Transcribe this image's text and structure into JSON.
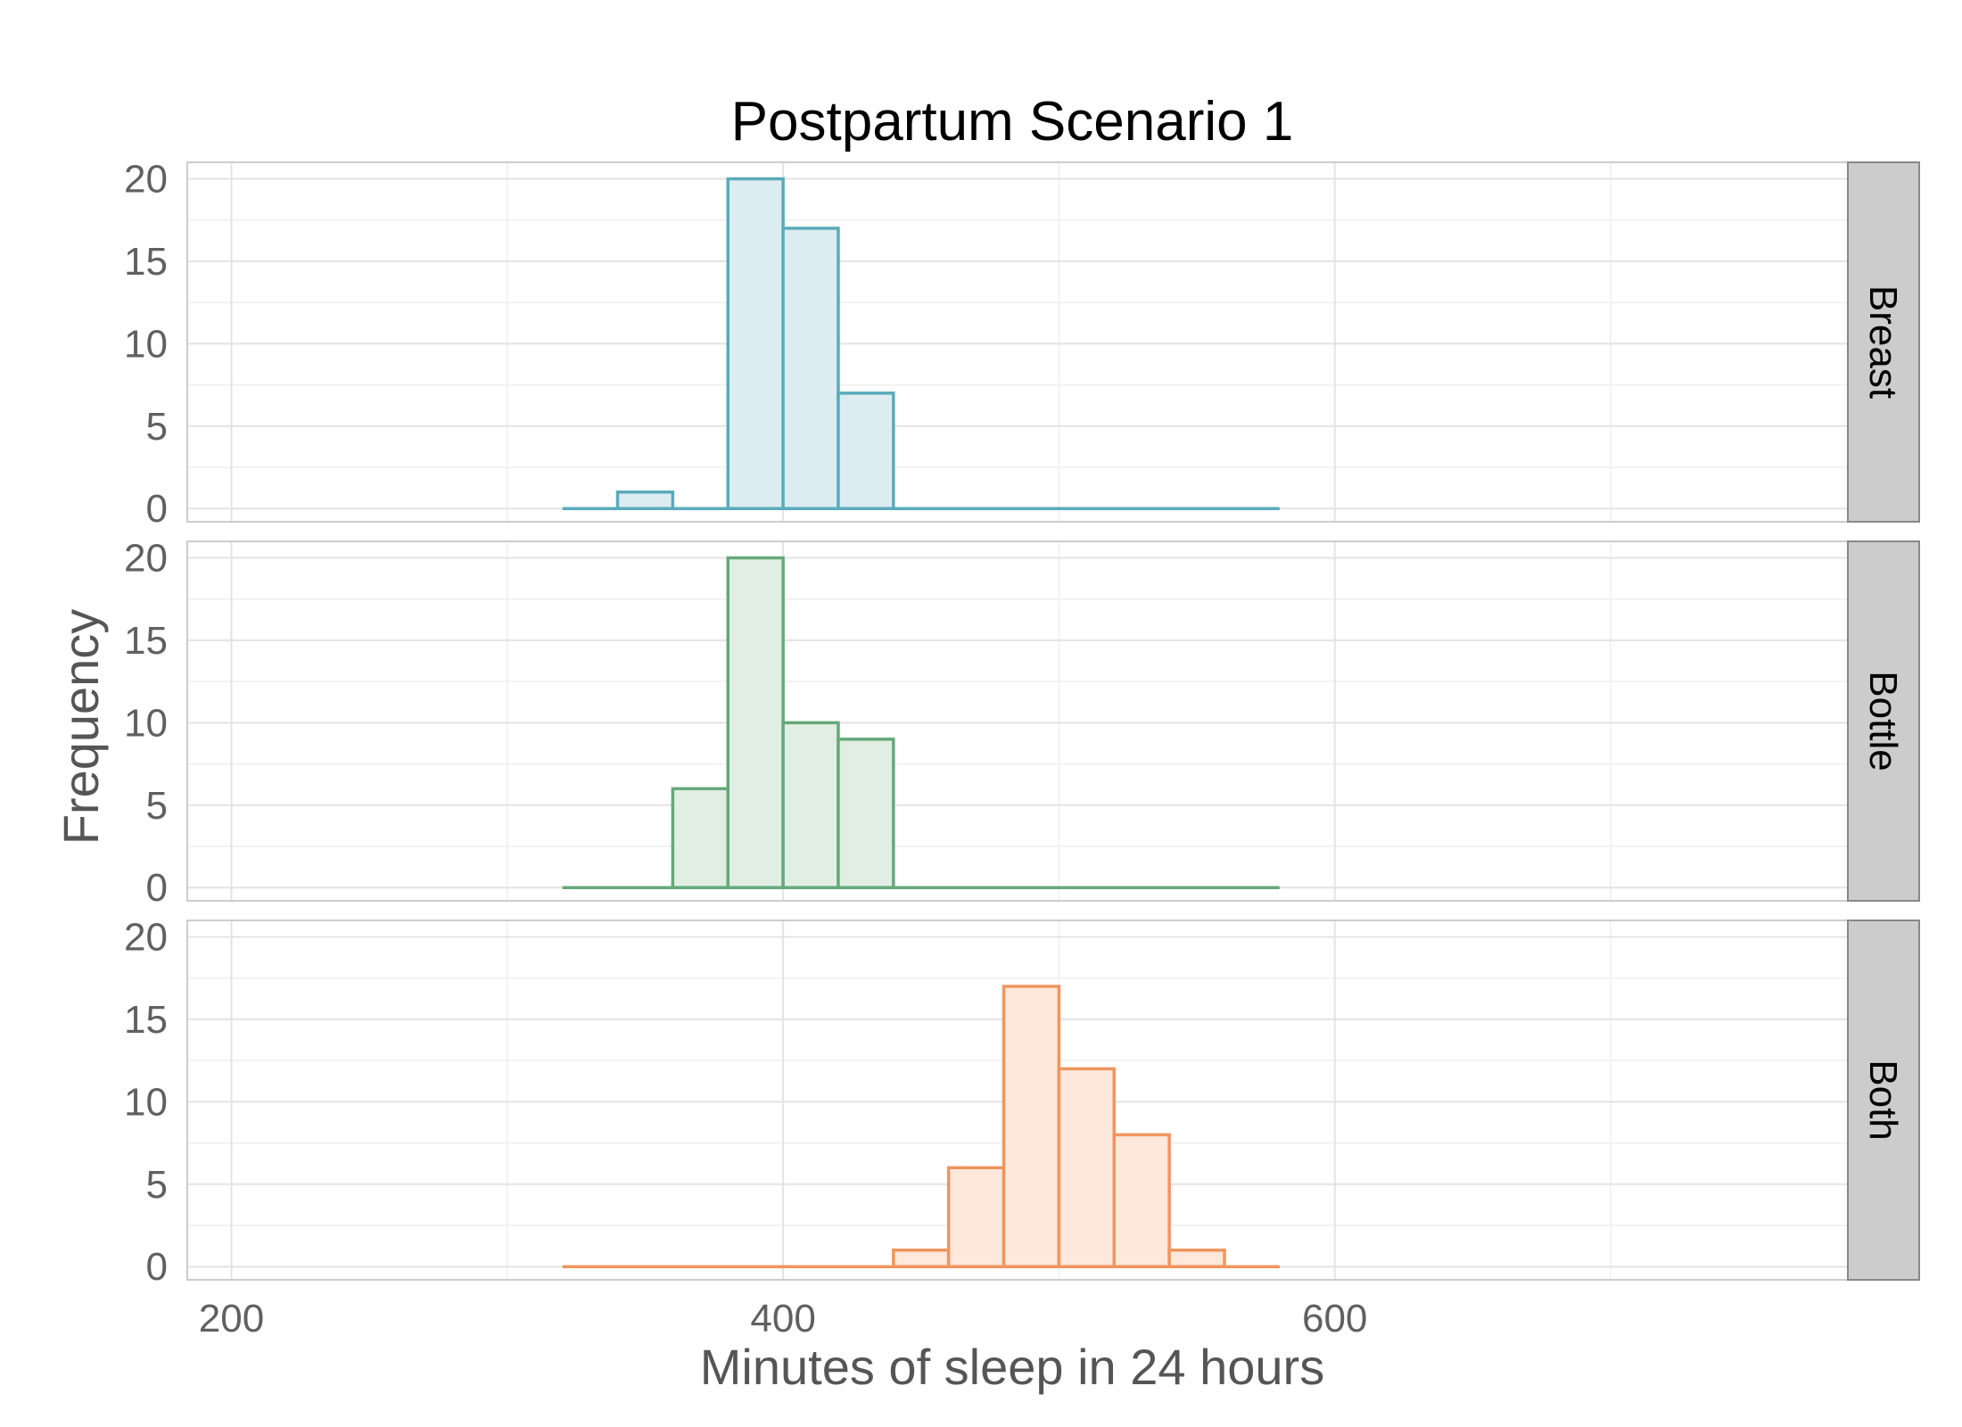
{
  "chart_data": {
    "type": "histogram",
    "title": "Postpartum Scenario 1",
    "xlabel": "Minutes of sleep in 24 hours",
    "ylabel": "Frequency",
    "xlim": [
      184,
      786
    ],
    "ylim": [
      -0.8,
      21
    ],
    "x_ticks": [
      200,
      400,
      600
    ],
    "x_minor_ticks": [
      300,
      500,
      700
    ],
    "y_ticks": [
      0,
      5,
      10,
      15,
      20
    ],
    "y_minor_ticks": [
      2.5,
      7.5,
      12.5,
      17.5
    ],
    "grid": true,
    "bin_width": 20,
    "bin_edges": [
      320,
      340,
      360,
      380,
      400,
      420,
      440,
      460,
      480,
      500,
      520,
      540,
      560,
      580
    ],
    "series": [
      {
        "name": "Breast",
        "color": "#5BABBB",
        "fill": "#DCEDF1",
        "counts": [
          0,
          1,
          0,
          20,
          17,
          7,
          0,
          0,
          0,
          0,
          0,
          0,
          0
        ]
      },
      {
        "name": "Bottle",
        "color": "#66A97A",
        "fill": "#E1EEE4",
        "counts": [
          0,
          0,
          6,
          20,
          10,
          9,
          0,
          0,
          0,
          0,
          0,
          0,
          0
        ]
      },
      {
        "name": "Both",
        "color": "#F0955E",
        "fill": "#FDE8DB",
        "counts": [
          0,
          0,
          0,
          0,
          0,
          0,
          1,
          6,
          17,
          12,
          8,
          1,
          0
        ]
      }
    ]
  }
}
